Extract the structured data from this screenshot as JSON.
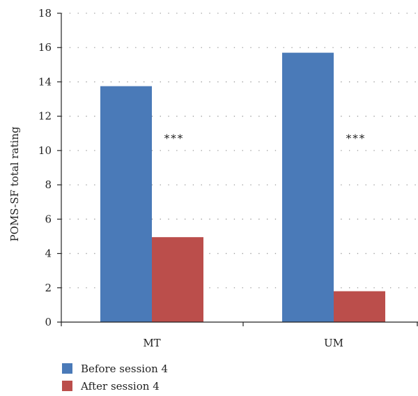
{
  "chart_data": {
    "type": "bar",
    "categories": [
      "MT",
      "UM"
    ],
    "series": [
      {
        "name": "Before session 4",
        "values": [
          13.75,
          15.7
        ],
        "color": "#4a7ab8"
      },
      {
        "name": "After session 4",
        "values": [
          4.95,
          1.8
        ],
        "color": "#bb4e4b"
      }
    ],
    "ylabel": "POMS-SF total rating",
    "ylim": [
      0,
      18
    ],
    "yticks": [
      "0",
      "2",
      "4",
      "6",
      "8",
      "10",
      "12",
      "14",
      "16",
      "18"
    ],
    "grid": "horizontal-dotted",
    "annotations": [
      "***",
      "***"
    ],
    "legend_position": "bottom-left"
  }
}
